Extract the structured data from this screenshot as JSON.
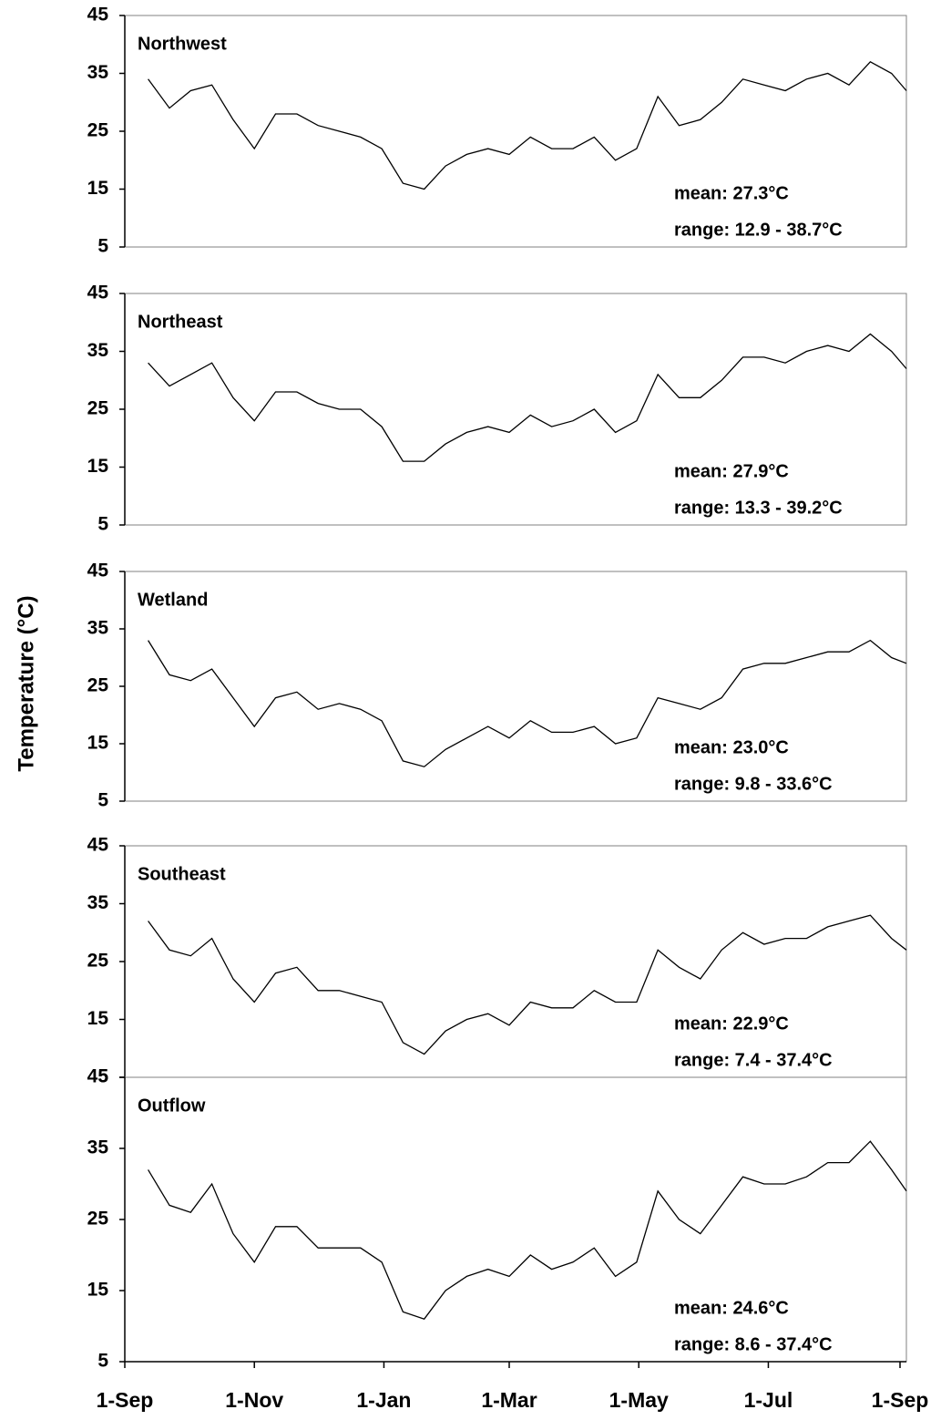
{
  "y_label": "Temperature (°C)",
  "chart_data": [
    {
      "type": "line",
      "title": "Northwest",
      "annotations": [
        "mean: 27.3°C",
        "range: 12.9 - 38.7°C"
      ],
      "x": [
        11,
        21,
        31,
        41,
        51,
        61,
        71,
        81,
        91,
        101,
        111,
        121,
        131,
        141,
        151,
        161,
        171,
        181,
        191,
        201,
        211,
        221,
        231,
        241,
        251,
        261,
        271,
        281,
        291,
        301,
        311,
        321,
        331,
        341,
        351,
        361,
        368
      ],
      "series": [
        {
          "color": "#000000",
          "values": [
            34,
            29,
            32,
            33,
            27,
            22,
            28,
            28,
            26,
            25,
            24,
            22,
            16,
            15,
            19,
            21,
            22,
            21,
            24,
            22,
            22,
            24,
            20,
            22,
            31,
            26,
            27,
            30,
            34,
            33,
            32,
            34,
            35,
            33,
            37,
            35,
            32
          ]
        }
      ],
      "xlim": [
        0,
        368
      ],
      "ylim": [
        5,
        45
      ],
      "yticks": [
        5,
        15,
        25,
        35,
        45
      ]
    },
    {
      "type": "line",
      "title": "Northeast",
      "annotations": [
        "mean: 27.9°C",
        "range: 13.3 - 39.2°C"
      ],
      "x": [
        11,
        21,
        31,
        41,
        51,
        61,
        71,
        81,
        91,
        101,
        111,
        121,
        131,
        141,
        151,
        161,
        171,
        181,
        191,
        201,
        211,
        221,
        231,
        241,
        251,
        261,
        271,
        281,
        291,
        301,
        311,
        321,
        331,
        341,
        351,
        361,
        368
      ],
      "series": [
        {
          "color": "#000000",
          "values": [
            33,
            29,
            31,
            33,
            27,
            23,
            28,
            28,
            26,
            25,
            25,
            22,
            16,
            16,
            19,
            21,
            22,
            21,
            24,
            22,
            23,
            25,
            21,
            23,
            31,
            27,
            27,
            30,
            34,
            34,
            33,
            35,
            36,
            35,
            38,
            35,
            32
          ]
        }
      ],
      "xlim": [
        0,
        368
      ],
      "ylim": [
        5,
        45
      ],
      "yticks": [
        5,
        15,
        25,
        35,
        45
      ]
    },
    {
      "type": "line",
      "title": "Wetland",
      "annotations": [
        "mean: 23.0°C",
        "range: 9.8 - 33.6°C"
      ],
      "x": [
        11,
        21,
        31,
        41,
        51,
        61,
        71,
        81,
        91,
        101,
        111,
        121,
        131,
        141,
        151,
        161,
        171,
        181,
        191,
        201,
        211,
        221,
        231,
        241,
        251,
        261,
        271,
        281,
        291,
        301,
        311,
        321,
        331,
        341,
        351,
        361,
        368
      ],
      "series": [
        {
          "color": "#000000",
          "values": [
            33,
            27,
            26,
            28,
            23,
            18,
            23,
            24,
            21,
            22,
            21,
            19,
            12,
            11,
            14,
            16,
            18,
            16,
            19,
            17,
            17,
            18,
            15,
            16,
            23,
            22,
            21,
            23,
            28,
            29,
            29,
            30,
            31,
            31,
            33,
            30,
            29
          ]
        }
      ],
      "xlim": [
        0,
        368
      ],
      "ylim": [
        5,
        45
      ],
      "yticks": [
        5,
        15,
        25,
        35,
        45
      ]
    },
    {
      "type": "line",
      "title": "Southeast",
      "annotations": [
        "mean: 22.9°C",
        "range: 7.4 - 37.4°C"
      ],
      "x": [
        11,
        21,
        31,
        41,
        51,
        61,
        71,
        81,
        91,
        101,
        111,
        121,
        131,
        141,
        151,
        161,
        171,
        181,
        191,
        201,
        211,
        221,
        231,
        241,
        251,
        261,
        271,
        281,
        291,
        301,
        311,
        321,
        331,
        341,
        351,
        361,
        368
      ],
      "series": [
        {
          "color": "#000000",
          "values": [
            32,
            27,
            26,
            29,
            22,
            18,
            23,
            24,
            20,
            20,
            19,
            18,
            11,
            9,
            13,
            15,
            16,
            14,
            18,
            17,
            17,
            20,
            18,
            18,
            27,
            24,
            22,
            27,
            30,
            28,
            29,
            29,
            31,
            32,
            33,
            29,
            27
          ]
        }
      ],
      "xlim": [
        0,
        368
      ],
      "ylim": [
        5,
        45
      ],
      "yticks": [
        5,
        15,
        25,
        35,
        45
      ]
    },
    {
      "type": "line",
      "title": "Outflow",
      "annotations": [
        "mean: 24.6°C",
        "range: 8.6 - 37.4°C"
      ],
      "x": [
        11,
        21,
        31,
        41,
        51,
        61,
        71,
        81,
        91,
        101,
        111,
        121,
        131,
        141,
        151,
        161,
        171,
        181,
        191,
        201,
        211,
        221,
        231,
        241,
        251,
        261,
        271,
        281,
        291,
        301,
        311,
        321,
        331,
        341,
        351,
        361,
        368
      ],
      "series": [
        {
          "color": "#000000",
          "values": [
            32,
            27,
            26,
            30,
            23,
            19,
            24,
            24,
            21,
            21,
            21,
            19,
            12,
            11,
            15,
            17,
            18,
            17,
            20,
            18,
            19,
            21,
            17,
            19,
            29,
            25,
            23,
            27,
            31,
            30,
            30,
            31,
            33,
            33,
            36,
            32,
            29
          ]
        }
      ],
      "xlim": [
        0,
        368
      ],
      "ylim": [
        5,
        45
      ],
      "yticks": [
        5,
        15,
        25,
        35,
        45
      ],
      "xticks": [
        {
          "value": 0,
          "label": "1-Sep"
        },
        {
          "value": 61,
          "label": "1-Nov"
        },
        {
          "value": 122,
          "label": "1-Jan"
        },
        {
          "value": 181,
          "label": "1-Mar"
        },
        {
          "value": 242,
          "label": "1-May"
        },
        {
          "value": 303,
          "label": "1-Jul"
        },
        {
          "value": 365,
          "label": "1-Sep"
        }
      ]
    }
  ]
}
